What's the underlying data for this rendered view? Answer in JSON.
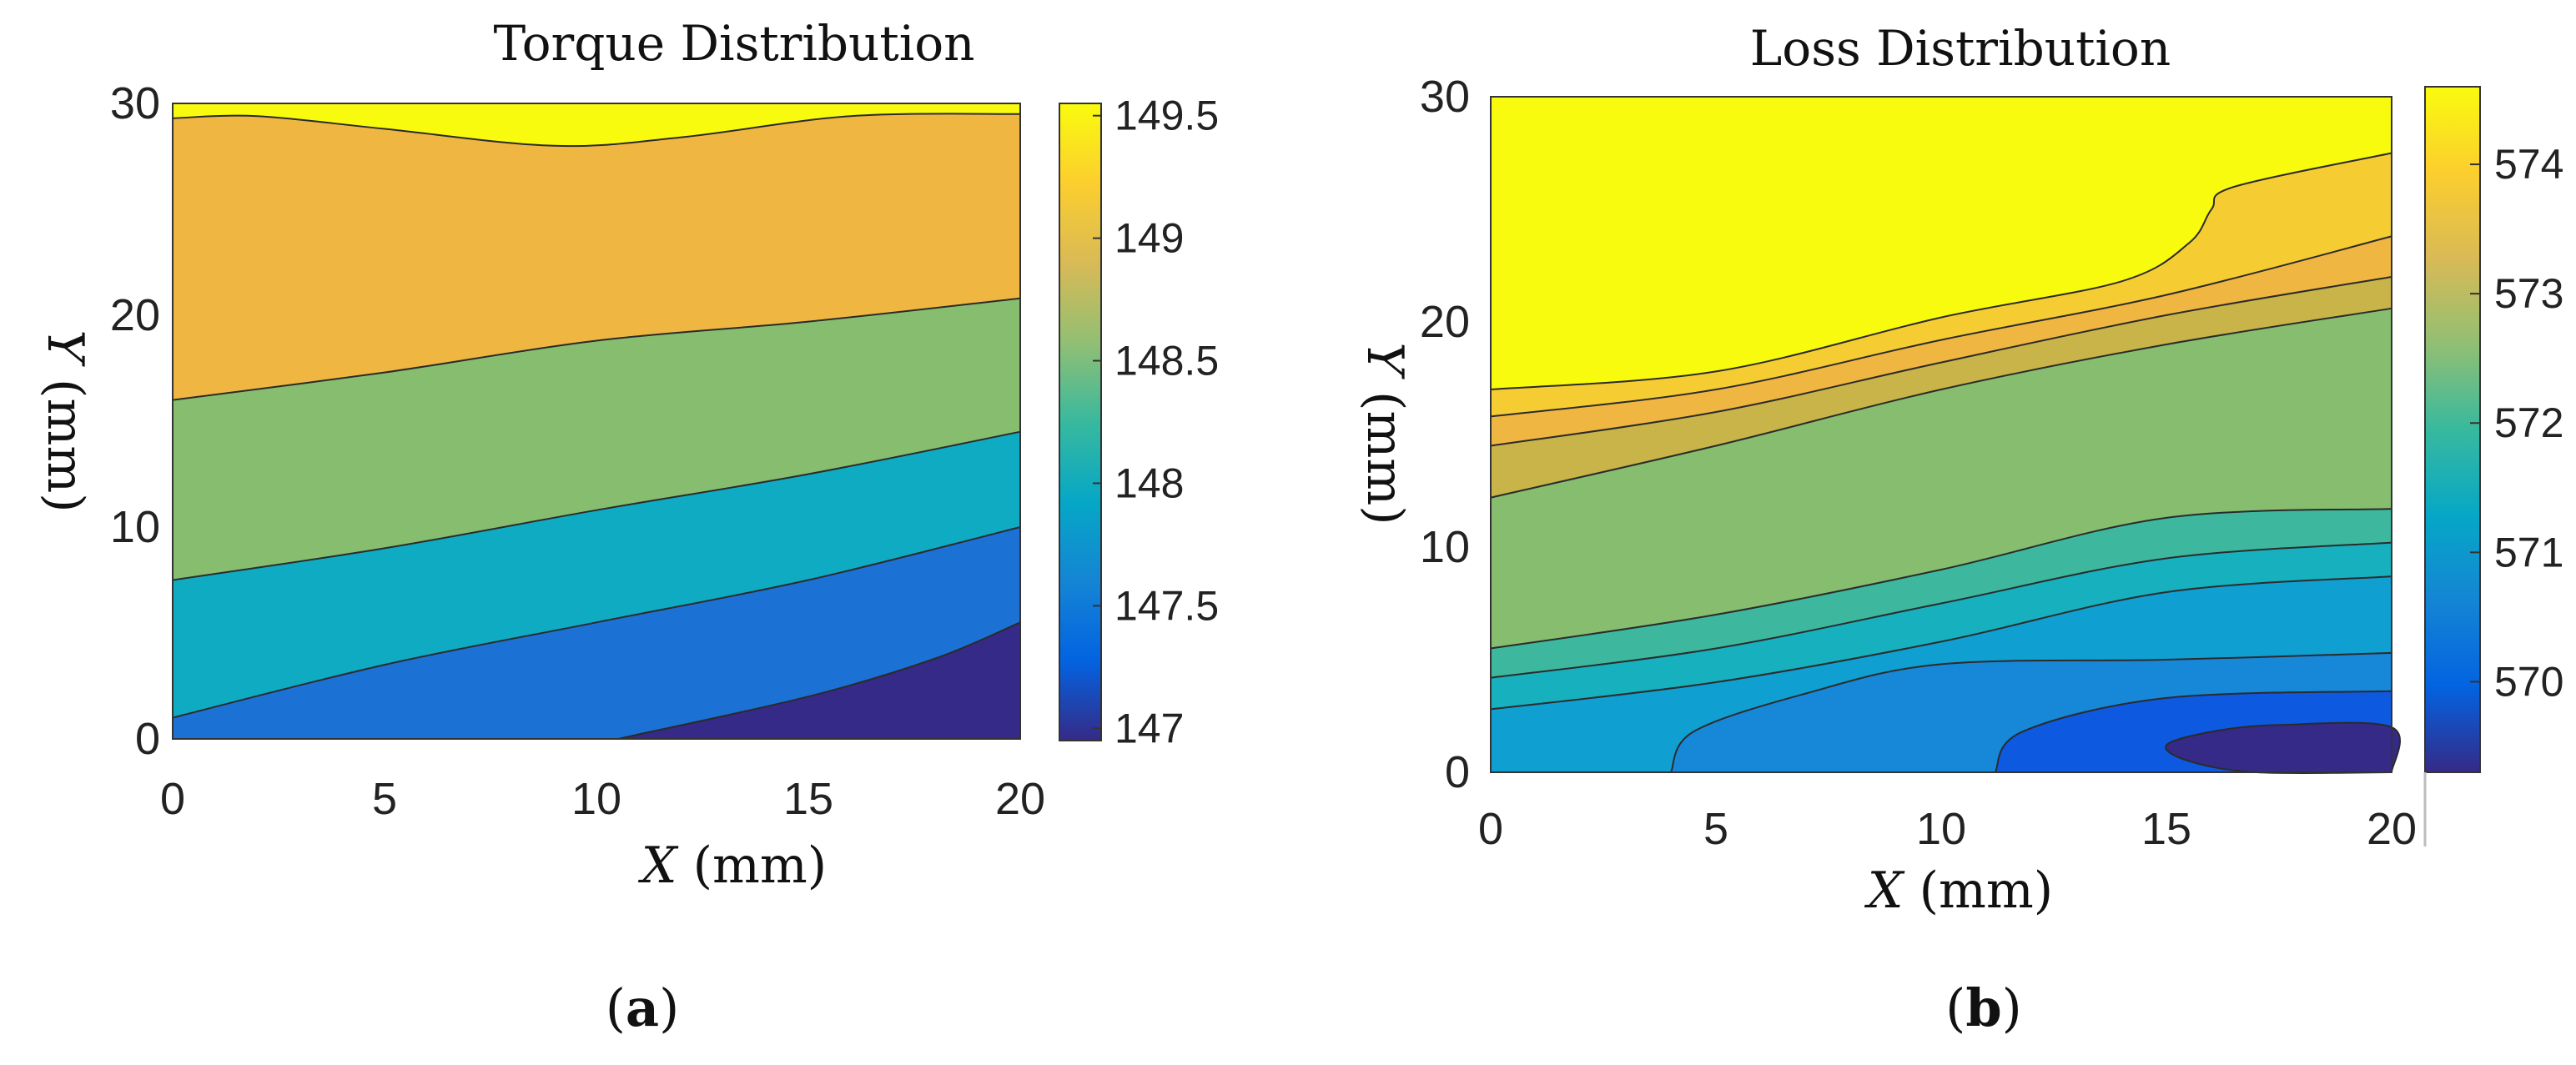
{
  "chart_data": [
    {
      "id": "a",
      "type": "contour",
      "title": "Torque Distribution",
      "xlabel": {
        "var": "X",
        "unit": "(mm)"
      },
      "ylabel": {
        "var": "Y",
        "unit": "(mm)"
      },
      "x_ticks": [
        "0",
        "5",
        "10",
        "15",
        "20"
      ],
      "y_ticks": [
        "0",
        "10",
        "20",
        "30"
      ],
      "xlim": [
        0,
        20
      ],
      "ylim": [
        0,
        30
      ],
      "colorbar": {
        "range": [
          146.95,
          149.55
        ],
        "ticks": [
          147,
          147.5,
          148,
          148.5,
          149,
          149.5
        ],
        "tick_labels": [
          "147",
          "147.5",
          "148",
          "148.5",
          "149",
          "149.5"
        ]
      },
      "levels": [
        {
          "value": 147.0,
          "color": "#352a87",
          "boundary": [
            [
              10.5,
              0
            ],
            [
              15,
              2
            ],
            [
              18,
              3.8
            ],
            [
              20,
              5.5
            ]
          ]
        },
        {
          "value": 147.5,
          "color": "#1b72d4",
          "boundary": [
            [
              0,
              1
            ],
            [
              5,
              3.5
            ],
            [
              10,
              5.5
            ],
            [
              15,
              7.5
            ],
            [
              20,
              10
            ]
          ]
        },
        {
          "value": 148.0,
          "color": "#0fabc2",
          "boundary": [
            [
              0,
              7.5
            ],
            [
              5,
              9
            ],
            [
              10,
              10.8
            ],
            [
              15,
              12.5
            ],
            [
              20,
              14.5
            ]
          ]
        },
        {
          "value": 148.5,
          "color": "#86bd6e",
          "boundary": [
            [
              0,
              16
            ],
            [
              5,
              17.3
            ],
            [
              10,
              18.8
            ],
            [
              15,
              19.7
            ],
            [
              20,
              20.8
            ]
          ]
        },
        {
          "value": 149.0,
          "color": "#f0b642",
          "boundary": [
            [
              0,
              29.3
            ],
            [
              2,
              29.4
            ],
            [
              5,
              28.8
            ],
            [
              9,
              28
            ],
            [
              12,
              28.4
            ],
            [
              16,
              29.4
            ],
            [
              20,
              29.5
            ]
          ]
        },
        {
          "value": 149.5,
          "color": "#f9fb0e",
          "boundary": null
        }
      ],
      "caption": "a"
    },
    {
      "id": "b",
      "type": "contour",
      "title": "Loss Distribution",
      "xlabel": {
        "var": "X",
        "unit": "(mm)"
      },
      "ylabel": {
        "var": "Y",
        "unit": "(mm)"
      },
      "x_ticks": [
        "0",
        "5",
        "10",
        "15",
        "20"
      ],
      "y_ticks": [
        "0",
        "10",
        "20",
        "30"
      ],
      "xlim": [
        0,
        20
      ],
      "ylim": [
        0,
        30
      ],
      "colorbar": {
        "range": [
          569.3,
          574.6
        ],
        "ticks": [
          570,
          571,
          572,
          573,
          574
        ],
        "tick_labels": [
          "570",
          "571",
          "572",
          "573",
          "574"
        ]
      },
      "levels": [
        {
          "value": 569.6,
          "color": "#352a87",
          "closed": [
            [
              20,
              0
            ],
            [
              20,
              2
            ],
            [
              17.5,
              2.1
            ],
            [
              16,
              1.8
            ],
            [
              15,
              1.2
            ],
            [
              15.5,
              0.5
            ],
            [
              17,
              0
            ],
            [
              20,
              0
            ]
          ]
        },
        {
          "value": 570.0,
          "color": "#0d59e0",
          "boundary": [
            [
              11.2,
              0
            ],
            [
              11.8,
              1.8
            ],
            [
              15,
              3.3
            ],
            [
              20,
              3.6
            ]
          ]
        },
        {
          "value": 570.6,
          "color": "#1787d8",
          "boundary": [
            [
              4,
              0
            ],
            [
              4.5,
              1.8
            ],
            [
              7,
              3.5
            ],
            [
              10,
              4.8
            ],
            [
              15,
              5
            ],
            [
              20,
              5.3
            ]
          ]
        },
        {
          "value": 571.3,
          "color": "#0f9fd1",
          "boundary": [
            [
              0,
              2.8
            ],
            [
              5,
              4
            ],
            [
              10,
              5.8
            ],
            [
              15,
              8
            ],
            [
              20,
              8.7
            ]
          ]
        },
        {
          "value": 571.8,
          "color": "#17b0be",
          "boundary": [
            [
              0,
              4.2
            ],
            [
              5,
              5.5
            ],
            [
              10,
              7.5
            ],
            [
              15,
              9.5
            ],
            [
              20,
              10.2
            ]
          ]
        },
        {
          "value": 572.2,
          "color": "#3db89e",
          "boundary": [
            [
              0,
              5.5
            ],
            [
              5,
              7
            ],
            [
              10,
              9
            ],
            [
              15,
              11.3
            ],
            [
              20,
              11.7
            ]
          ]
        },
        {
          "value": 572.6,
          "color": "#86bd6e",
          "boundary": [
            [
              0,
              12.2
            ],
            [
              5,
              14.5
            ],
            [
              10,
              17
            ],
            [
              15,
              19
            ],
            [
              20,
              20.6
            ]
          ]
        },
        {
          "value": 573.2,
          "color": "#c8b448",
          "boundary": [
            [
              0,
              14.5
            ],
            [
              5,
              16
            ],
            [
              10,
              18.2
            ],
            [
              15,
              20.3
            ],
            [
              20,
              22
            ]
          ]
        },
        {
          "value": 573.7,
          "color": "#f0b642",
          "boundary": [
            [
              0,
              15.8
            ],
            [
              5,
              17
            ],
            [
              10,
              19.2
            ],
            [
              15,
              21.2
            ],
            [
              20,
              23.8
            ]
          ]
        },
        {
          "value": 574.2,
          "color": "#f5cd33",
          "boundary": [
            [
              0,
              17
            ],
            [
              5,
              17.8
            ],
            [
              10,
              20.2
            ],
            [
              14,
              21.8
            ],
            [
              15.5,
              23.5
            ],
            [
              16,
              25
            ],
            [
              16.5,
              26
            ],
            [
              20,
              27.5
            ]
          ]
        },
        {
          "value": 574.6,
          "color": "#f9fb0e",
          "boundary": null
        }
      ],
      "caption": "b"
    }
  ]
}
